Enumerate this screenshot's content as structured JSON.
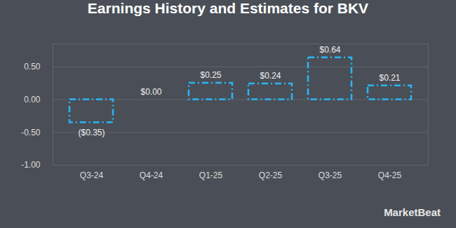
{
  "chart_data": {
    "type": "bar",
    "title": "Earnings History and Estimates for BKV",
    "source": "MarketBeat",
    "categories": [
      "Q3-24",
      "Q4-24",
      "Q1-25",
      "Q2-25",
      "Q3-25",
      "Q4-25"
    ],
    "values": [
      -0.35,
      0.0,
      0.25,
      0.24,
      0.64,
      0.21
    ],
    "value_labels": [
      "($0.35)",
      "$0.00",
      "$0.25",
      "$0.24",
      "$0.64",
      "$0.21"
    ],
    "data_labels": true,
    "color": "#29b6f6",
    "line_style": "dashdot",
    "ylim": [
      -1.0,
      0.85
    ],
    "yticks": [
      {
        "value": -1.0,
        "label": "-1.00"
      },
      {
        "value": -0.5,
        "label": "-0.50"
      },
      {
        "value": 0,
        "label": "0.00"
      },
      {
        "value": 0.5,
        "label": "0.50"
      }
    ],
    "grid": true
  }
}
